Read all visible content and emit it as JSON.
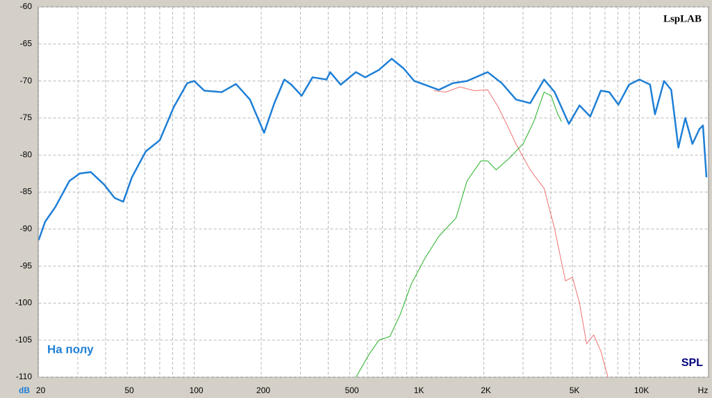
{
  "chart_data": {
    "type": "line",
    "x_label": "Hz",
    "y_label": "dB",
    "annotations": [
      "На полу",
      "SPL"
    ],
    "watermark": "LspLAB",
    "log_x": true,
    "grid": true,
    "xlim": [
      20,
      20000
    ],
    "ylim": [
      -110,
      -60
    ],
    "xticks": [
      20,
      50,
      100,
      200,
      500,
      {
        "value": 1000,
        "label": "1K"
      },
      {
        "value": 2000,
        "label": "2K"
      },
      {
        "value": 5000,
        "label": "5K"
      },
      {
        "value": 10000,
        "label": "10K"
      }
    ],
    "xgrid": [
      30,
      40,
      60,
      70,
      80,
      90,
      300,
      400,
      600,
      700,
      800,
      900,
      3000,
      4000,
      6000,
      7000,
      8000,
      9000
    ],
    "yticks": [
      -60,
      -65,
      -70,
      -75,
      -80,
      -85,
      -90,
      -95,
      -100,
      -105,
      -110
    ],
    "series": [
      {
        "color": "#f07070",
        "width": 1,
        "x": [
          1190,
          1350,
          1560,
          1810,
          2080,
          2320,
          2500,
          2790,
          3230,
          3730,
          4160,
          4650,
          5000,
          5380,
          5790,
          6230,
          6710,
          7220
        ],
        "values": [
          -71.3,
          -71.5,
          -70.8,
          -71.3,
          -71.2,
          -73.5,
          -75.5,
          -78.5,
          -82,
          -84.5,
          -90,
          -97,
          -96.5,
          -100,
          -105.5,
          -104.3,
          -106.5,
          -110
        ]
      },
      {
        "color": "#22b022",
        "width": 1,
        "x": [
          533,
          608,
          676,
          757,
          843,
          942,
          1085,
          1254,
          1500,
          1680,
          1940,
          2080,
          2270,
          2590,
          3000,
          3350,
          3730,
          4010,
          4300,
          4470
        ],
        "values": [
          -110,
          -107,
          -105,
          -104.5,
          -101.5,
          -97.5,
          -94,
          -91,
          -88.5,
          -83.5,
          -80.8,
          -80.8,
          -82,
          -80.5,
          -78.5,
          -75.5,
          -71.5,
          -72,
          -74.5,
          -75.5
        ]
      },
      {
        "color": "#1e7fd6",
        "width": 2.5,
        "x": [
          20,
          21.4,
          23.8,
          27.5,
          30.6,
          34.3,
          39.4,
          43.9,
          48,
          52.5,
          60.6,
          70,
          81,
          93,
          100,
          111,
          133,
          154,
          178,
          206,
          229,
          254,
          273,
          304,
          340,
          393,
          408,
          455,
          533,
          586,
          676,
          771,
          872,
          973,
          1085,
          1254,
          1450,
          1680,
          2080,
          2410,
          2790,
          3230,
          3730,
          4160,
          4820,
          5380,
          6010,
          6710,
          7320,
          8040,
          8980,
          10000,
          11170,
          11740,
          12900,
          13890,
          14960,
          16080,
          17300,
          18600,
          19300,
          20000
        ],
        "values": [
          -91.5,
          -89,
          -87,
          -83.5,
          -82.5,
          -82.3,
          -84,
          -85.8,
          -86.3,
          -83,
          -79.5,
          -78,
          -73.5,
          -70.3,
          -70,
          -71.3,
          -71.5,
          -70.4,
          -72.5,
          -77,
          -73,
          -69.8,
          -70.5,
          -72,
          -69.5,
          -69.8,
          -68.8,
          -70.5,
          -68.8,
          -69.5,
          -68.5,
          -67,
          -68.3,
          -70,
          -70.5,
          -71.2,
          -70.3,
          -70,
          -68.8,
          -70.3,
          -72.5,
          -73,
          -69.8,
          -71.5,
          -75.8,
          -73.3,
          -74.8,
          -71.3,
          -71.5,
          -73.2,
          -70.5,
          -69.8,
          -70.5,
          -74.5,
          -70,
          -71.2,
          -79,
          -75,
          -78.5,
          -76.5,
          -76,
          -83
        ]
      }
    ]
  }
}
